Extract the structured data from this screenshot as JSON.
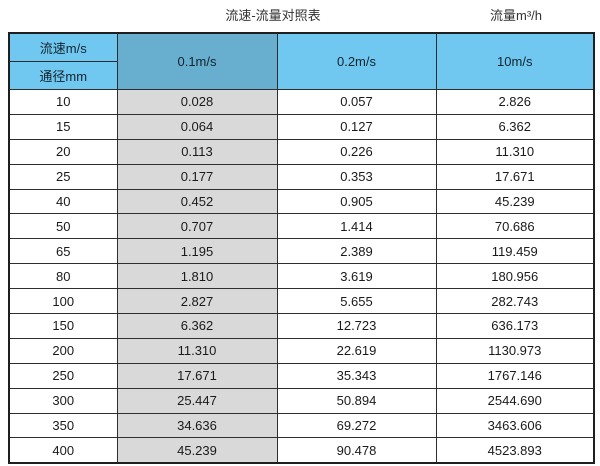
{
  "page": {
    "caption": "流速-流量对照表",
    "unit_caption": "流量m³/h"
  },
  "colors": {
    "header_blue": "#70c8f0",
    "header_dark_blue": "#68aece",
    "shaded_column": "#d9d9d9",
    "grid_border": "#2e2e2e"
  },
  "chart_data": {
    "type": "table",
    "title": "流速-流量对照表",
    "unit_label": "流量m³/h",
    "header": {
      "velocity_label": "流速m/s",
      "diameter_label": "通径mm",
      "velocity_columns": [
        "0.1m/s",
        "0.2m/s",
        "10m/s"
      ]
    },
    "rows": [
      [
        "10",
        "0.028",
        "0.057",
        "2.826"
      ],
      [
        "15",
        "0.064",
        "0.127",
        "6.362"
      ],
      [
        "20",
        "0.113",
        "0.226",
        "11.310"
      ],
      [
        "25",
        "0.177",
        "0.353",
        "17.671"
      ],
      [
        "40",
        "0.452",
        "0.905",
        "45.239"
      ],
      [
        "50",
        "0.707",
        "1.414",
        "70.686"
      ],
      [
        "65",
        "1.195",
        "2.389",
        "119.459"
      ],
      [
        "80",
        "1.810",
        "3.619",
        "180.956"
      ],
      [
        "100",
        "2.827",
        "5.655",
        "282.743"
      ],
      [
        "150",
        "6.362",
        "12.723",
        "636.173"
      ],
      [
        "200",
        "11.310",
        "22.619",
        "1130.973"
      ],
      [
        "250",
        "17.671",
        "35.343",
        "1767.146"
      ],
      [
        "300",
        "25.447",
        "50.894",
        "2544.690"
      ],
      [
        "350",
        "34.636",
        "69.272",
        "3463.606"
      ],
      [
        "400",
        "45.239",
        "90.478",
        "4523.893"
      ]
    ]
  }
}
